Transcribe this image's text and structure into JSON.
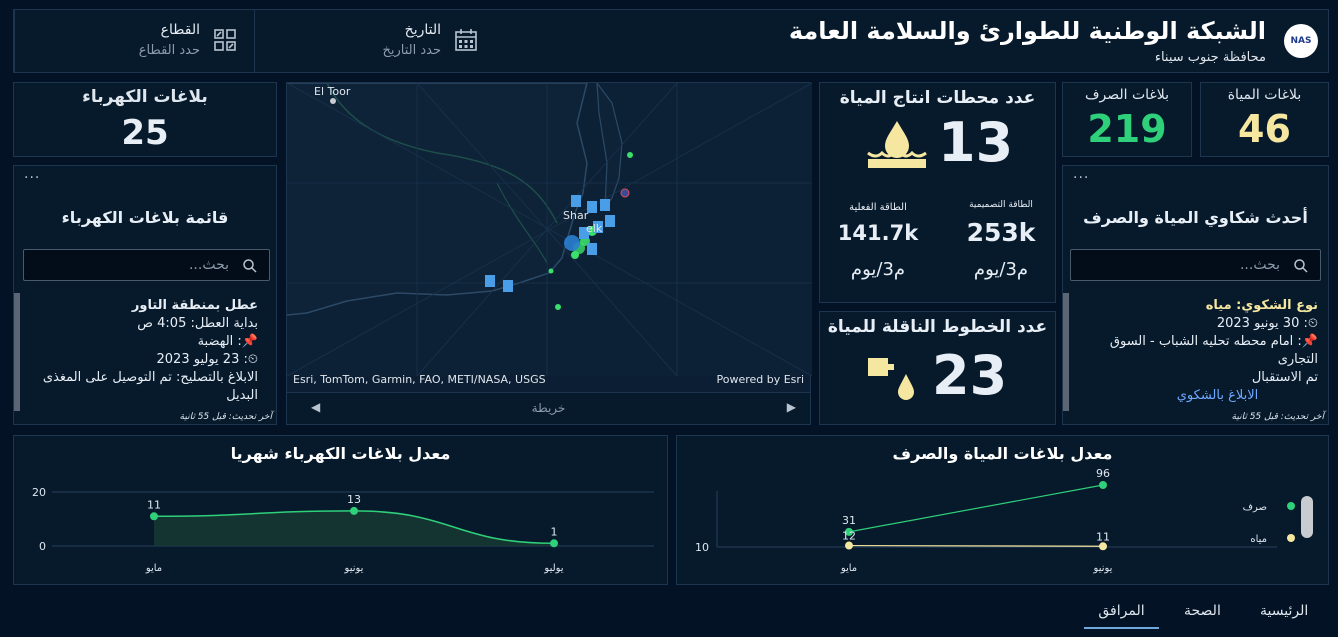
{
  "header": {
    "title": "الشبكة الوطنية للطوارئ والسلامة العامة",
    "subtitle": "محافظة جنوب سيناء",
    "logo_text": "NAS",
    "date_filter": {
      "label": "التاريخ",
      "value": "حدد التاريخ"
    },
    "sector_filter": {
      "label": "القطاع",
      "value": "حدد القطاع"
    }
  },
  "kpis": {
    "water_reports": {
      "label": "بلاغات المياة",
      "value": "46",
      "color": "#f5e6a0"
    },
    "sewage_reports": {
      "label": "بلاغات الصرف",
      "value": "219",
      "color": "#2fd07a"
    },
    "electricity_reports": {
      "label": "بلاغات الكهرباء",
      "value": "25"
    },
    "water_stations": {
      "label": "عدد محطات انتاج المياة",
      "value": "13",
      "design_capacity": {
        "label": "الطاقة التصميمية",
        "value": "253k",
        "unit": "م3/يوم"
      },
      "actual_capacity": {
        "label": "الطاقة الفعلية",
        "value": "141.7k",
        "unit": "م3/يوم"
      }
    },
    "water_lines": {
      "label": "عدد الخطوط الناقلة للمياة",
      "value": "23"
    }
  },
  "electricity_list": {
    "dots": "···",
    "title": "قائمة بلاغات الكهرباء",
    "search_placeholder": "بحث...",
    "item": {
      "title": "عطل بمنطقة التاور",
      "start": "بداية العطل: 4:05 ص",
      "area": ": الهضبة",
      "date": ": 23 يوليو 2023",
      "fix": "الابلاغ بالتصليح: تم التوصيل على المغذى البديل"
    },
    "updated": "آخر تحديث: قبل 55 ثانية"
  },
  "complaints_list": {
    "dots": "···",
    "title": "أحدث شكاوي المياة والصرف",
    "search_placeholder": "بحث...",
    "item": {
      "type": "نوع الشكوي: مياه",
      "date": ": 30 يونيو 2023",
      "location": ": امام محطه تحليه الشباب - السوق التجارى",
      "status": "تم الاستقبال",
      "link": "الابلاغ بالشكوي"
    },
    "updated": "آخر تحديث: قبل 55 ثانية"
  },
  "map": {
    "label_eltoor": "El Toor",
    "label_sharm": "Shar",
    "label_elk": "elk",
    "attribution": "Esri, TomTom, Garmin, FAO, METI/NASA, USGS",
    "powered": "Powered by Esri",
    "footer": "خريطة"
  },
  "chart_data": [
    {
      "type": "area",
      "title": "معدل بلاغات الكهرباء شهريا",
      "categories": [
        "مايو",
        "يونيو",
        "يوليو"
      ],
      "values": [
        11,
        13,
        1
      ],
      "yticks": [
        0,
        20
      ],
      "ylim": [
        0,
        20
      ],
      "color": "#2fd07a"
    },
    {
      "type": "line",
      "title": "معدل بلاغات المياة والصرف",
      "categories": [
        "مايو",
        "يونيو"
      ],
      "series": [
        {
          "name": "صرف",
          "values": [
            31,
            96
          ],
          "color": "#2fd07a"
        },
        {
          "name": "مياه",
          "values": [
            12,
            11
          ],
          "color": "#f5e6a0"
        }
      ],
      "yticks": [
        10
      ],
      "legend": "right"
    }
  ],
  "nav": {
    "home": "الرئيسية",
    "health": "الصحة",
    "facilities": "المرافق"
  }
}
